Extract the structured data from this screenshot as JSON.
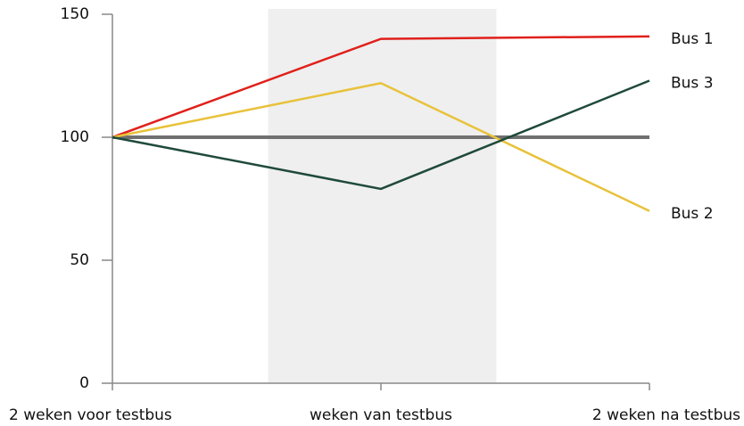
{
  "chart_data": {
    "type": "line",
    "categories": [
      "2 weken voor testbus",
      "weken van testbus",
      "2 weken na testbus"
    ],
    "series": [
      {
        "name": "Bus 1",
        "color": "#e0201b",
        "values": [
          100,
          140,
          141
        ]
      },
      {
        "name": "Bus 2",
        "color": "#e8c23a",
        "values": [
          100,
          122,
          70
        ]
      },
      {
        "name": "Bus 3",
        "color": "#1f4a3a",
        "values": [
          100,
          79,
          123
        ]
      }
    ],
    "reference": 100,
    "highlight_index": 1,
    "ylim": [
      0,
      150
    ],
    "yticks": [
      0,
      50,
      100,
      150
    ]
  }
}
